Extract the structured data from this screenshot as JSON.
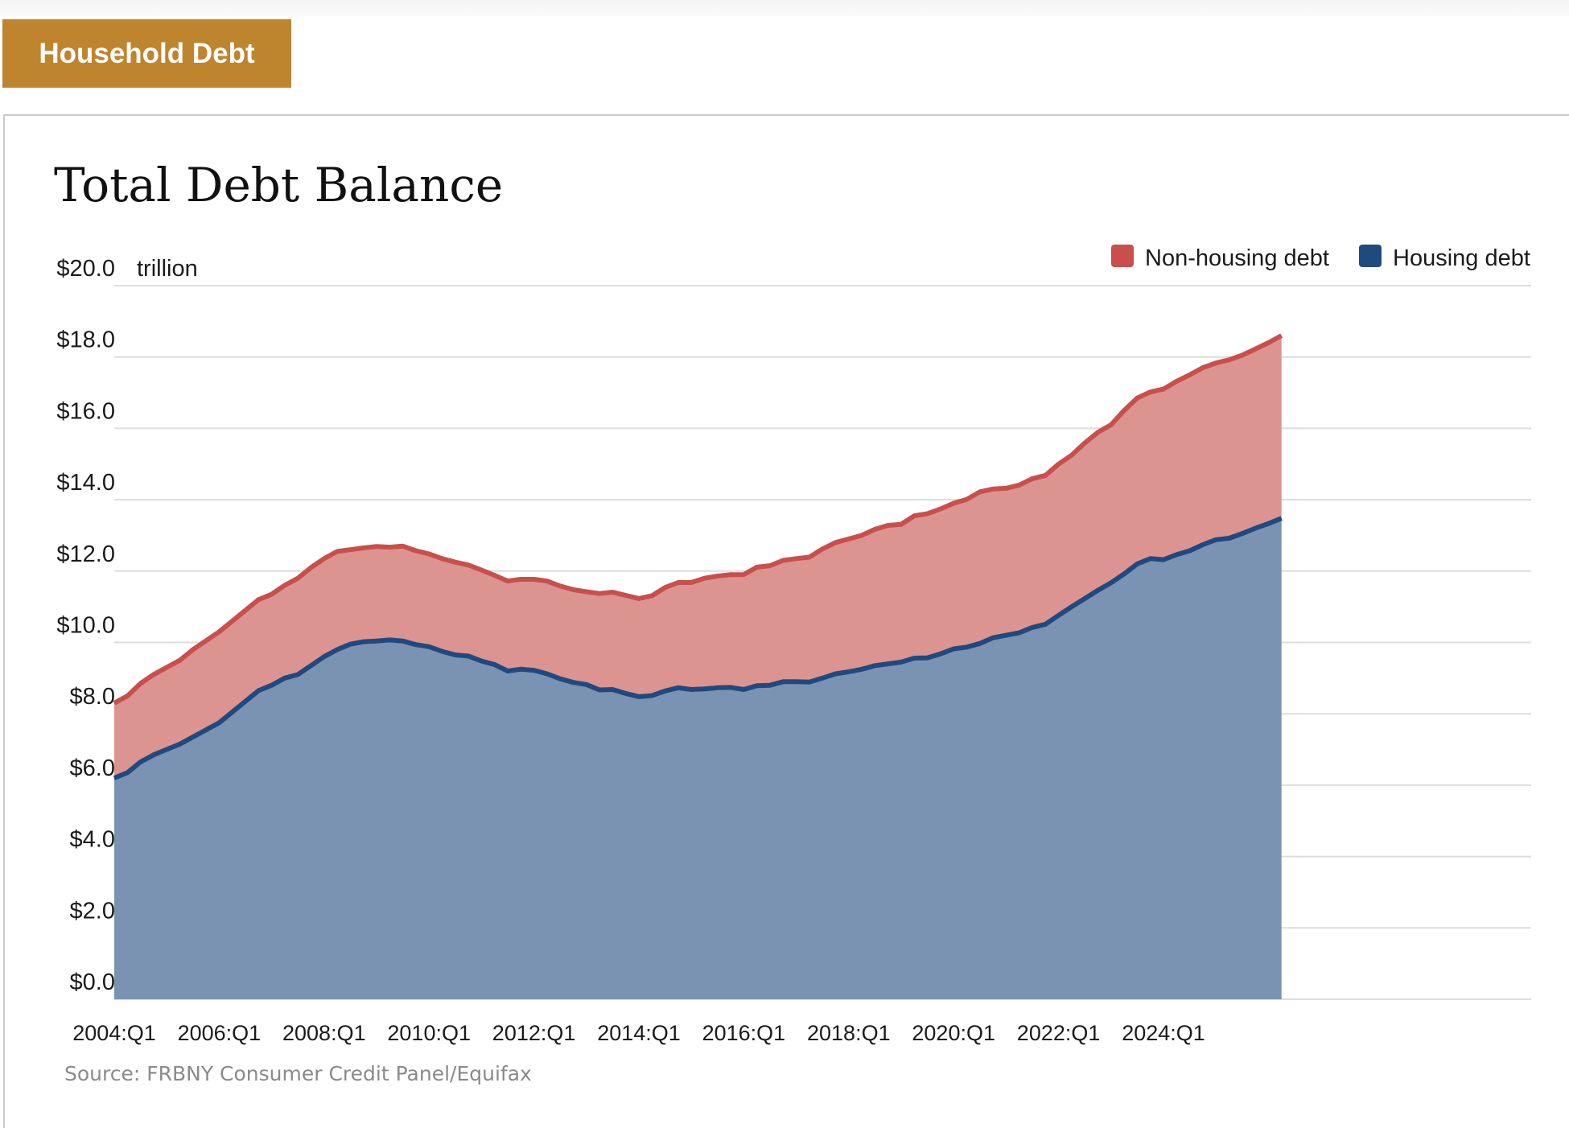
{
  "header": {
    "tab_label": "Household Debt"
  },
  "source_note": "Source: FRBNY Consumer Credit Panel/Equifax",
  "chart_data": {
    "type": "area",
    "stacked": true,
    "title": "Total Debt Balance",
    "ylabel": "trillion",
    "ylim": [
      0,
      20
    ],
    "y_ticks": [
      0,
      2,
      4,
      6,
      8,
      10,
      12,
      14,
      16,
      18,
      20
    ],
    "y_tick_labels": [
      "$0.0",
      "$2.0",
      "$4.0",
      "$6.0",
      "$8.0",
      "$10.0",
      "$12.0",
      "$14.0",
      "$16.0",
      "$18.0",
      "$20.0"
    ],
    "x_tick_labels": [
      "2004:Q1",
      "2006:Q1",
      "2008:Q1",
      "2010:Q1",
      "2012:Q1",
      "2014:Q1",
      "2016:Q1",
      "2018:Q1",
      "2020:Q1",
      "2022:Q1",
      "2024:Q1"
    ],
    "x_start": "2004:Q1",
    "x_end": "2025:Q2",
    "grid": true,
    "legend_position": "top-right",
    "colors": {
      "non_housing_fill": "#dc9491",
      "non_housing_line": "#c94f4c",
      "housing_fill": "#7b93b2",
      "housing_line": "#1f4a80",
      "grid": "#dddddd"
    },
    "legend": [
      {
        "label": "Non-housing debt",
        "color": "#c94f4c"
      },
      {
        "label": "Housing debt",
        "color": "#1f4a80"
      }
    ],
    "series": [
      {
        "name": "Housing debt",
        "values": [
          6.2,
          6.35,
          6.65,
          6.85,
          7.0,
          7.15,
          7.35,
          7.55,
          7.75,
          8.05,
          8.35,
          8.65,
          8.8,
          9.0,
          9.1,
          9.35,
          9.6,
          9.8,
          9.95,
          10.02,
          10.04,
          10.07,
          10.04,
          9.94,
          9.88,
          9.75,
          9.65,
          9.62,
          9.48,
          9.38,
          9.2,
          9.25,
          9.22,
          9.12,
          8.98,
          8.88,
          8.82,
          8.67,
          8.68,
          8.57,
          8.48,
          8.51,
          8.64,
          8.73,
          8.68,
          8.7,
          8.73,
          8.74,
          8.68,
          8.79,
          8.8,
          8.9,
          8.9,
          8.89,
          9.0,
          9.12,
          9.18,
          9.25,
          9.35,
          9.4,
          9.45,
          9.56,
          9.57,
          9.68,
          9.82,
          9.87,
          9.97,
          10.13,
          10.2,
          10.27,
          10.42,
          10.51,
          10.76,
          11.0,
          11.23,
          11.46,
          11.67,
          11.92,
          12.2,
          12.35,
          12.32,
          12.46,
          12.57,
          12.74,
          12.88,
          12.92,
          13.05,
          13.2,
          13.33,
          13.48
        ]
      },
      {
        "name": "Non-housing debt",
        "values": [
          2.1,
          2.15,
          2.2,
          2.25,
          2.3,
          2.35,
          2.45,
          2.5,
          2.55,
          2.55,
          2.55,
          2.55,
          2.55,
          2.6,
          2.7,
          2.75,
          2.75,
          2.75,
          2.65,
          2.63,
          2.65,
          2.6,
          2.66,
          2.63,
          2.6,
          2.6,
          2.6,
          2.55,
          2.55,
          2.5,
          2.52,
          2.52,
          2.55,
          2.6,
          2.6,
          2.6,
          2.6,
          2.7,
          2.73,
          2.75,
          2.75,
          2.8,
          2.9,
          2.95,
          3.0,
          3.1,
          3.13,
          3.16,
          3.22,
          3.32,
          3.35,
          3.4,
          3.45,
          3.5,
          3.62,
          3.68,
          3.72,
          3.75,
          3.82,
          3.88,
          3.86,
          3.99,
          4.04,
          4.06,
          4.08,
          4.14,
          4.25,
          4.17,
          4.12,
          4.14,
          4.17,
          4.17,
          4.24,
          4.25,
          4.36,
          4.43,
          4.43,
          4.58,
          4.65,
          4.67,
          4.78,
          4.86,
          4.93,
          4.96,
          4.95,
          5.0,
          5.0,
          5.02,
          5.07,
          5.12
        ]
      }
    ]
  }
}
